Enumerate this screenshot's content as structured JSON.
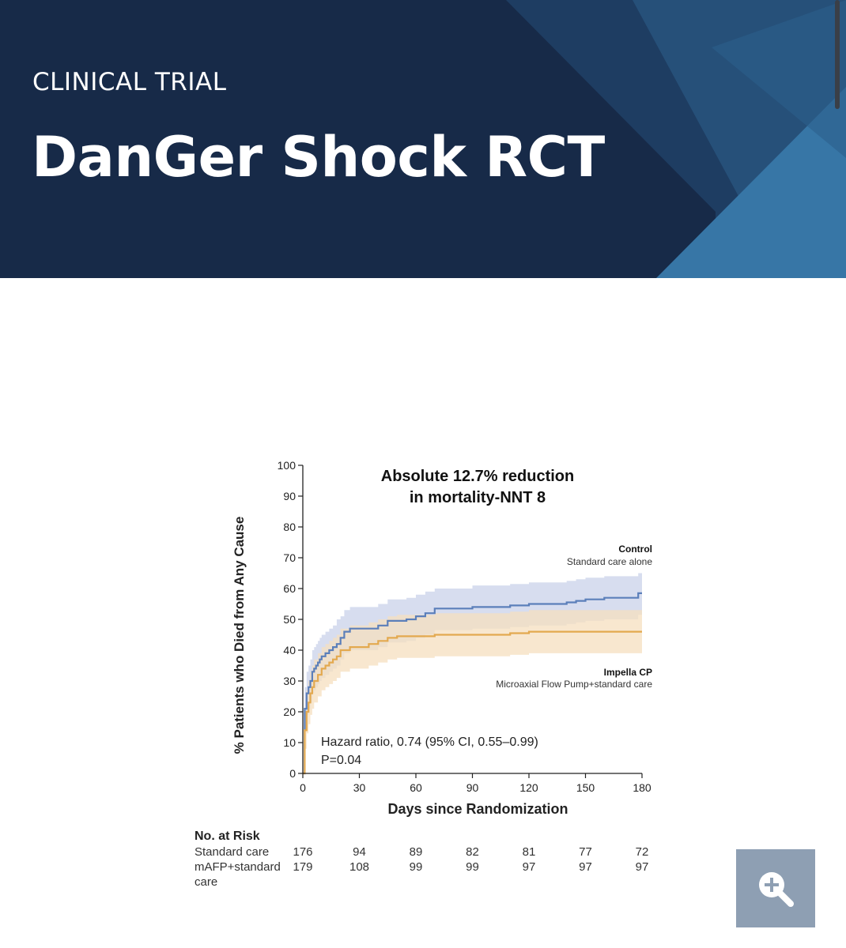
{
  "header": {
    "eyebrow": "CLINICAL TRIAL",
    "title": "DanGer Shock RCT"
  },
  "colors": {
    "header_bg": "#172a48",
    "control": "#5b7fba",
    "control_band": "#c9d2ea",
    "impella": "#e3a94f",
    "impella_band": "#f6dfbf",
    "zoom_button": "#8e9fb3"
  },
  "zoom_button": {
    "icon": "zoom-in-icon"
  },
  "chart_data": {
    "type": "line",
    "title": "Absolute 12.7% reduction in mortality-NNT 8",
    "title_lines": [
      "Absolute 12.7% reduction",
      "in mortality-NNT 8"
    ],
    "xlabel": "Days since Randomization",
    "ylabel": "% Patients who Died from Any Cause",
    "xlim": [
      0,
      180
    ],
    "ylim": [
      0,
      100
    ],
    "xticks": [
      0,
      30,
      60,
      90,
      120,
      150,
      180
    ],
    "yticks": [
      0,
      10,
      20,
      30,
      40,
      50,
      60,
      70,
      80,
      90,
      100
    ],
    "grid": false,
    "annotation_lines": [
      "Hazard ratio, 0.74 (95% CI, 0.55–0.99)",
      "P=0.04"
    ],
    "series": [
      {
        "name": "Control",
        "description": "Standard care alone",
        "x": [
          0,
          1,
          2,
          3,
          4,
          5,
          6,
          7,
          8,
          9,
          10,
          12,
          14,
          16,
          18,
          20,
          22,
          25,
          30,
          40,
          45,
          50,
          55,
          60,
          65,
          70,
          80,
          90,
          100,
          110,
          120,
          130,
          140,
          145,
          150,
          160,
          170,
          175,
          178,
          180
        ],
        "y": [
          0,
          21,
          26,
          28,
          30,
          33,
          34,
          35,
          36,
          37,
          38,
          39,
          40,
          41,
          42,
          44,
          46,
          47,
          47,
          48,
          49.5,
          49.5,
          50,
          51,
          52,
          53.5,
          53.5,
          54,
          54,
          54.5,
          55,
          55,
          55.5,
          56,
          56.5,
          57,
          57,
          57,
          58.5,
          58.5
        ],
        "ci_lower": [
          0,
          14,
          19,
          21,
          23,
          26,
          27,
          28,
          29,
          30,
          31,
          32,
          33,
          34,
          35,
          37,
          39,
          40,
          40,
          41,
          42.5,
          42.5,
          43,
          44,
          45,
          46.5,
          46.5,
          47,
          47,
          47.5,
          48,
          48,
          48.5,
          49,
          49.5,
          50,
          50,
          50,
          51.5,
          51.5
        ],
        "ci_upper": [
          0,
          28,
          33,
          35,
          37,
          40,
          41,
          42,
          43,
          44,
          45,
          46,
          47,
          48,
          50,
          51,
          53,
          54,
          54,
          55,
          56.5,
          56.5,
          57,
          58,
          59,
          60,
          60,
          61,
          61,
          61.5,
          62,
          62,
          62.5,
          63,
          63.5,
          64,
          64,
          64,
          65,
          65
        ]
      },
      {
        "name": "Impella CP",
        "description": "Microaxial Flow Pump+standard care",
        "x": [
          0,
          1,
          2,
          3,
          4,
          5,
          6,
          8,
          10,
          12,
          14,
          16,
          18,
          20,
          25,
          30,
          35,
          40,
          45,
          50,
          60,
          70,
          80,
          90,
          100,
          110,
          120,
          130,
          140,
          150,
          160,
          170,
          180
        ],
        "y": [
          0,
          14,
          20,
          23,
          26,
          28,
          30,
          32,
          34,
          35,
          36,
          37,
          38,
          40,
          41,
          41,
          42,
          43,
          44,
          44.5,
          44.5,
          45,
          45,
          45,
          45,
          45.5,
          46,
          46,
          46,
          46,
          46,
          46,
          46
        ],
        "ci_lower": [
          0,
          8,
          13,
          16,
          19,
          21,
          23,
          25,
          27,
          28,
          29,
          30,
          31,
          33,
          34,
          34,
          35,
          36,
          37,
          37.5,
          37.5,
          38,
          38,
          38,
          38,
          38.5,
          39,
          39,
          39,
          39,
          39,
          39,
          39
        ],
        "ci_upper": [
          0,
          20,
          27,
          30,
          33,
          35,
          37,
          39,
          41,
          42,
          43,
          44,
          45,
          47,
          48,
          48,
          49,
          50,
          51,
          51.5,
          51.5,
          52,
          52,
          52,
          52,
          52.5,
          53,
          53,
          53,
          53,
          53,
          53,
          53
        ]
      }
    ],
    "legend_labels": [
      {
        "series": "Control",
        "subtitle": "Standard care alone"
      },
      {
        "series": "Impella CP",
        "subtitle": "Microaxial Flow Pump+standard care"
      }
    ],
    "risk_table": {
      "heading": "No. at Risk",
      "days": [
        0,
        30,
        60,
        90,
        120,
        150,
        180
      ],
      "rows": [
        {
          "label_lines": [
            "Standard care"
          ],
          "values": [
            176,
            94,
            89,
            82,
            81,
            77,
            72
          ]
        },
        {
          "label_lines": [
            "mAFP+standard",
            "care"
          ],
          "values": [
            179,
            108,
            99,
            99,
            97,
            97,
            97
          ]
        }
      ]
    }
  }
}
